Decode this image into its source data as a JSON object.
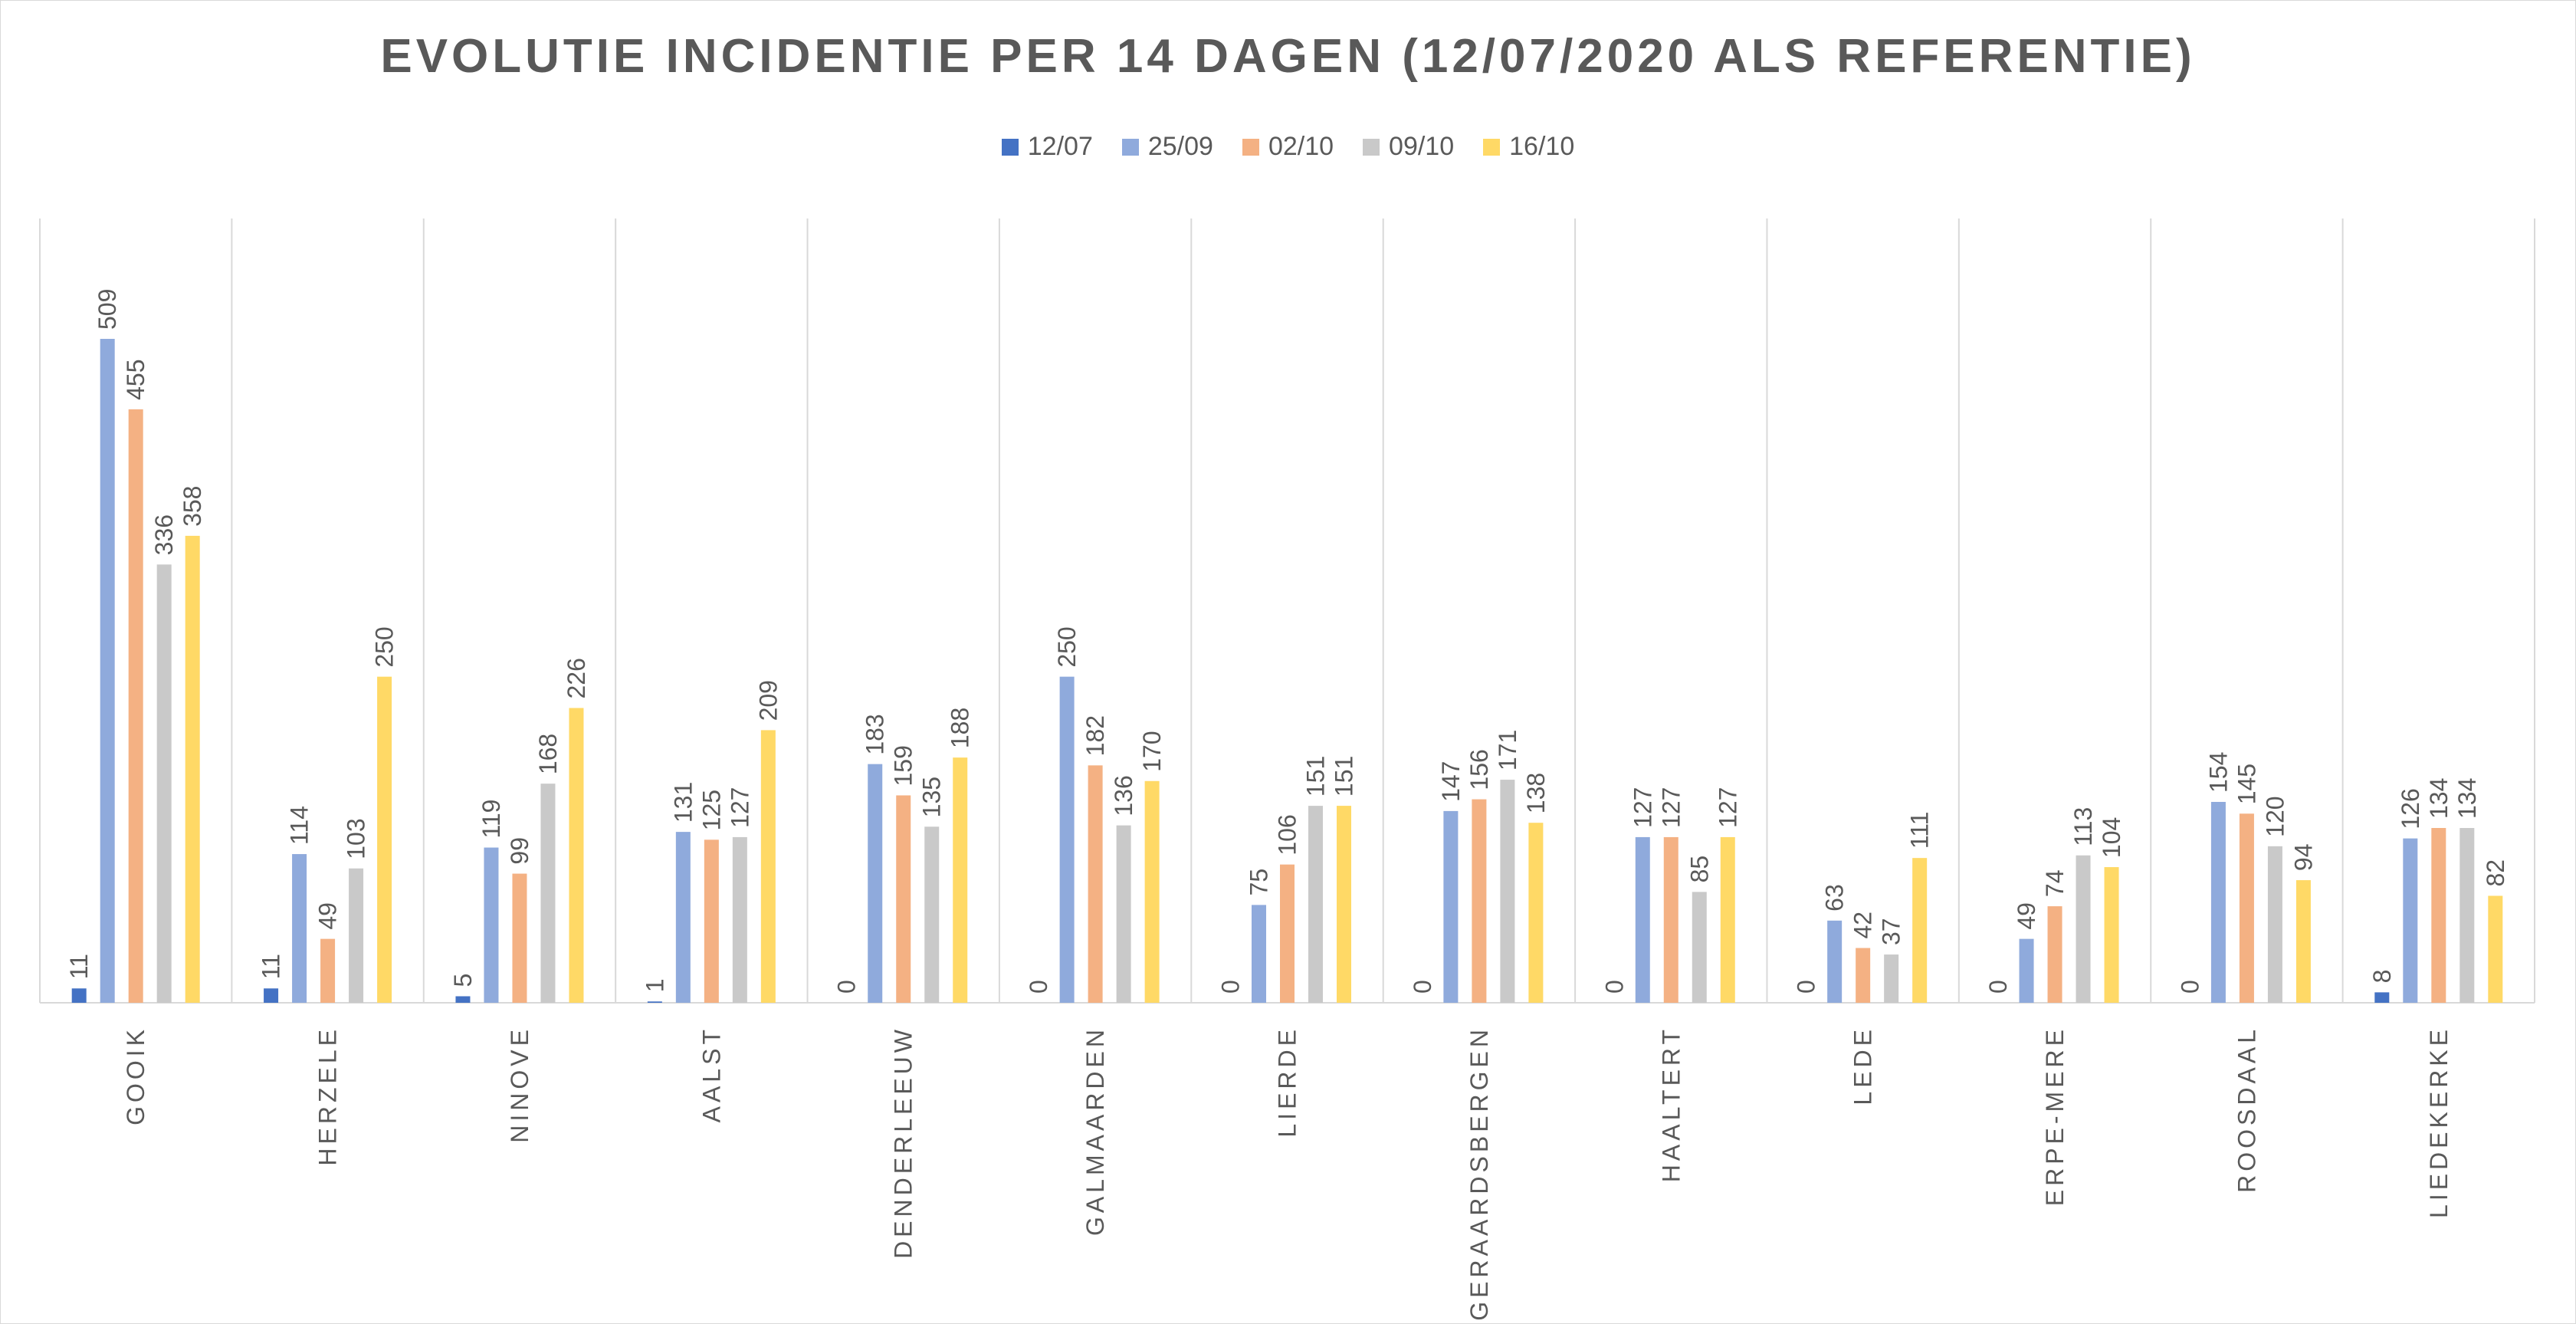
{
  "chart_data": {
    "type": "bar",
    "title": "EVOLUTIE INCIDENTIE PER 14 DAGEN (12/07/2020 ALS REFERENTIE)",
    "categories": [
      "GOOIK",
      "HERZELE",
      "NINOVE",
      "AALST",
      "DENDERLEEUW",
      "GALMAARDEN",
      "LIERDE",
      "GERAARDSBERGEN",
      "HAALTERT",
      "LEDE",
      "ERPE-MERE",
      "ROOSDAAL",
      "LIEDEKERKE"
    ],
    "series": [
      {
        "name": "12/07",
        "color": "#4472c4",
        "values": [
          11,
          11,
          5,
          1,
          0,
          0,
          0,
          0,
          0,
          0,
          0,
          0,
          8
        ]
      },
      {
        "name": "25/09",
        "color": "#8faadc",
        "values": [
          509,
          114,
          119,
          131,
          183,
          250,
          75,
          147,
          127,
          63,
          49,
          154,
          126
        ]
      },
      {
        "name": "02/10",
        "color": "#f4b183",
        "values": [
          455,
          49,
          99,
          125,
          159,
          182,
          106,
          156,
          127,
          42,
          74,
          145,
          134
        ]
      },
      {
        "name": "09/10",
        "color": "#c9c9c9",
        "values": [
          336,
          103,
          168,
          127,
          135,
          136,
          151,
          171,
          85,
          37,
          113,
          120,
          134
        ]
      },
      {
        "name": "16/10",
        "color": "#ffd966",
        "values": [
          358,
          250,
          226,
          209,
          188,
          170,
          151,
          138,
          127,
          111,
          104,
          94,
          82
        ]
      }
    ],
    "xlabel": "",
    "ylabel": "",
    "ylim": [
      0,
      600
    ],
    "y_axis_visible": false,
    "grid": "vertical separators between categories",
    "legend_position": "top",
    "data_labels": true
  }
}
